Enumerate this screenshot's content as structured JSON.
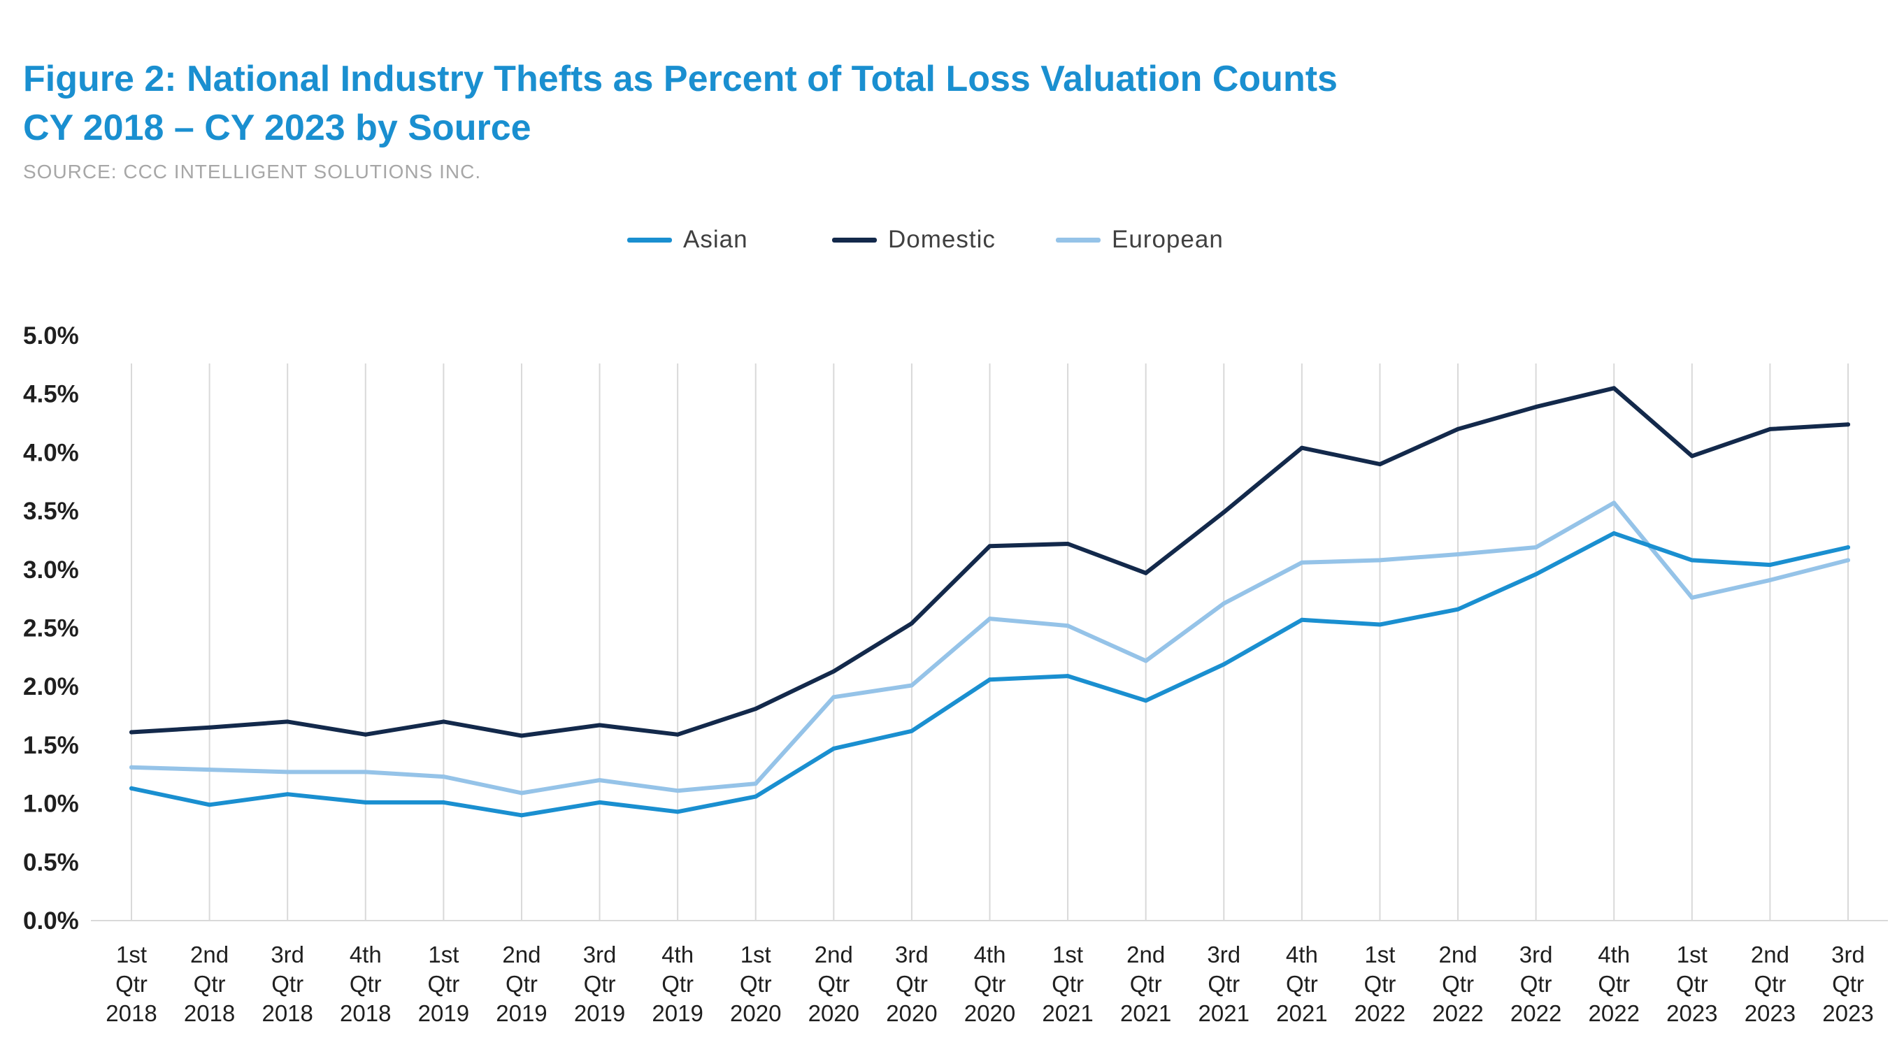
{
  "chart_data": {
    "type": "line",
    "title_line1": "Figure 2: National Industry Thefts as Percent of Total Loss Valuation Counts",
    "title_line2": "CY 2018 – CY 2023 by Source",
    "subtitle": "SOURCE: CCC INTELLIGENT SOLUTIONS INC.",
    "ylim": [
      0,
      5.0
    ],
    "yticks": [
      "0.0%",
      "0.5%",
      "1.0%",
      "1.5%",
      "2.0%",
      "2.5%",
      "3.0%",
      "3.5%",
      "4.0%",
      "4.5%",
      "5.0%"
    ],
    "legend_position": "top-center",
    "categories": [
      [
        "1st",
        "Qtr",
        "2018"
      ],
      [
        "2nd",
        "Qtr",
        "2018"
      ],
      [
        "3rd",
        "Qtr",
        "2018"
      ],
      [
        "4th",
        "Qtr",
        "2018"
      ],
      [
        "1st",
        "Qtr",
        "2019"
      ],
      [
        "2nd",
        "Qtr",
        "2019"
      ],
      [
        "3rd",
        "Qtr",
        "2019"
      ],
      [
        "4th",
        "Qtr",
        "2019"
      ],
      [
        "1st",
        "Qtr",
        "2020"
      ],
      [
        "2nd",
        "Qtr",
        "2020"
      ],
      [
        "3rd",
        "Qtr",
        "2020"
      ],
      [
        "4th",
        "Qtr",
        "2020"
      ],
      [
        "1st",
        "Qtr",
        "2021"
      ],
      [
        "2nd",
        "Qtr",
        "2021"
      ],
      [
        "3rd",
        "Qtr",
        "2021"
      ],
      [
        "4th",
        "Qtr",
        "2021"
      ],
      [
        "1st",
        "Qtr",
        "2022"
      ],
      [
        "2nd",
        "Qtr",
        "2022"
      ],
      [
        "3rd",
        "Qtr",
        "2022"
      ],
      [
        "4th",
        "Qtr",
        "2022"
      ],
      [
        "1st",
        "Qtr",
        "2023"
      ],
      [
        "2nd",
        "Qtr",
        "2023"
      ],
      [
        "3rd",
        "Qtr",
        "2023"
      ]
    ],
    "series": [
      {
        "name": "Asian",
        "color": "#1a8fd0",
        "values": [
          1.13,
          0.99,
          1.08,
          1.01,
          1.01,
          0.9,
          1.01,
          0.93,
          1.06,
          1.47,
          1.62,
          2.06,
          2.09,
          1.88,
          2.19,
          2.57,
          2.53,
          2.66,
          2.96,
          3.31,
          3.08,
          3.04,
          3.19
        ]
      },
      {
        "name": "Domestic",
        "color": "#13294b",
        "values": [
          1.61,
          1.65,
          1.7,
          1.59,
          1.7,
          1.58,
          1.67,
          1.59,
          1.81,
          2.13,
          2.54,
          3.2,
          3.22,
          2.97,
          3.49,
          4.04,
          3.9,
          4.2,
          4.39,
          4.55,
          3.97,
          4.2,
          4.24
        ]
      },
      {
        "name": "European",
        "color": "#95c3e8",
        "values": [
          1.31,
          1.29,
          1.27,
          1.27,
          1.23,
          1.09,
          1.2,
          1.11,
          1.17,
          1.91,
          2.01,
          2.58,
          2.52,
          2.22,
          2.71,
          3.06,
          3.08,
          3.13,
          3.19,
          3.57,
          2.76,
          2.91,
          3.08
        ]
      }
    ]
  }
}
